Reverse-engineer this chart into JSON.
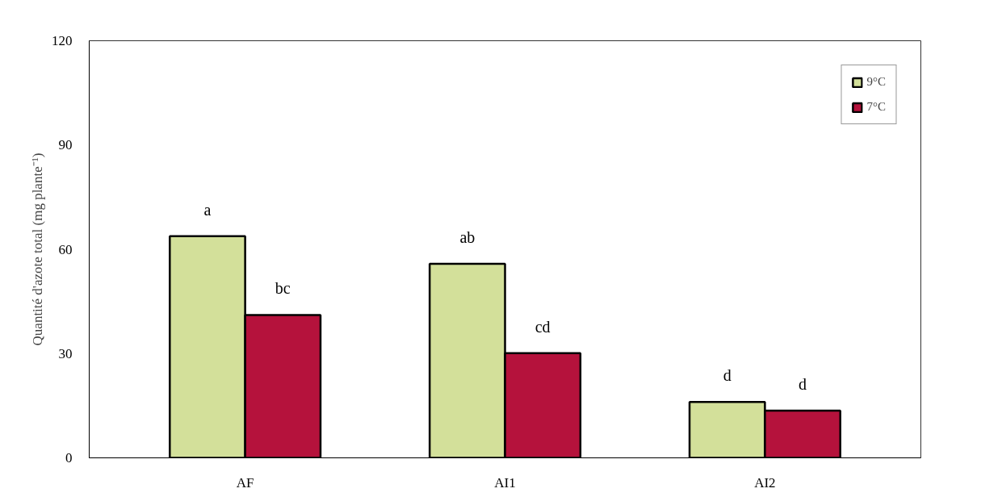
{
  "chart_data": {
    "type": "bar",
    "ylabel": "Quantité d'azote total (mg plante⁻¹)",
    "categories": [
      "AF",
      "AI1",
      "AI2"
    ],
    "series": [
      {
        "name": "9°C",
        "color": "#d3e09a",
        "values": [
          63.8,
          55.8,
          16.1
        ],
        "value_labels": [
          "a",
          "ab",
          "d"
        ]
      },
      {
        "name": "7°C",
        "color": "#b5123c",
        "values": [
          41.1,
          30.1,
          13.6
        ],
        "value_labels": [
          "bc",
          "cd",
          "d"
        ]
      }
    ],
    "ylim": [
      0,
      120
    ],
    "yticks": [
      0,
      30,
      60,
      90,
      120
    ],
    "grid": false,
    "legend": "top right"
  }
}
